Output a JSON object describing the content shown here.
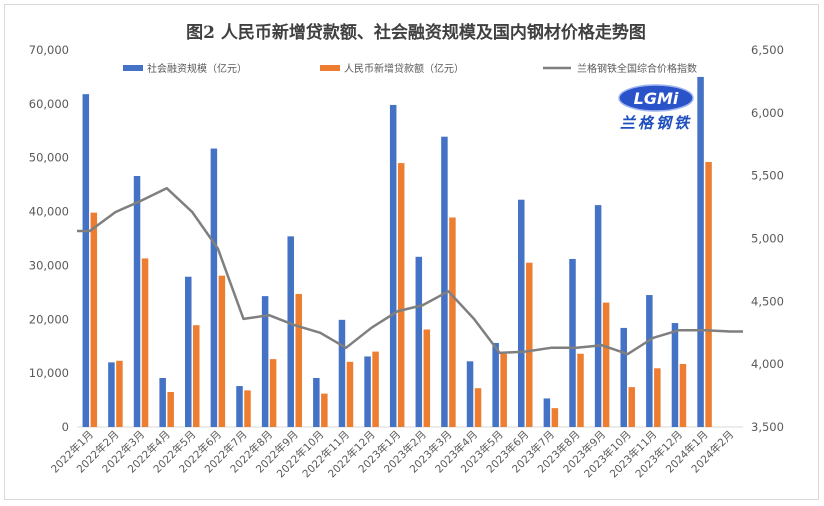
{
  "chart_data": {
    "type": "bar",
    "title": "图2 人民币新增贷款额、社会融资规模及国内钢材价格走势图",
    "categories": [
      "2022年1月",
      "2022年2月",
      "2022年3月",
      "2022年4月",
      "2022年5月",
      "2022年6月",
      "2022年7月",
      "2022年8月",
      "2022年9月",
      "2022年10月",
      "2022年11月",
      "2022年12月",
      "2023年1月",
      "2023年2月",
      "2023年3月",
      "2023年4月",
      "2023年5月",
      "2023年6月",
      "2023年7月",
      "2023年8月",
      "2023年9月",
      "2023年10月",
      "2023年11月",
      "2023年12月",
      "2024年1月",
      "2024年2月"
    ],
    "series": [
      {
        "name": "社会融资规模（亿元）",
        "type": "bar",
        "axis": "left",
        "color": "#4472c4",
        "values": [
          61800,
          12000,
          46600,
          9100,
          27900,
          51700,
          7600,
          24300,
          35400,
          9100,
          19900,
          13100,
          59800,
          31600,
          53900,
          12200,
          15600,
          42200,
          5300,
          31200,
          41200,
          18400,
          24500,
          19300,
          65000,
          null
        ]
      },
      {
        "name": "人民币新增贷款额（亿元）",
        "type": "bar",
        "axis": "left",
        "color": "#ed7d31",
        "values": [
          39800,
          12300,
          31300,
          6500,
          18900,
          28100,
          6800,
          12600,
          24700,
          6200,
          12100,
          14000,
          49000,
          18100,
          38900,
          7200,
          13600,
          30500,
          3500,
          13600,
          23100,
          7400,
          10900,
          11700,
          49200,
          null
        ]
      },
      {
        "name": "兰格钢铁全国综合价格指数",
        "type": "line",
        "axis": "right",
        "color": "#7f7f7f",
        "values": [
          5060,
          5210,
          5300,
          5400,
          5210,
          4920,
          4360,
          4390,
          4310,
          4250,
          4130,
          4290,
          4420,
          4470,
          4580,
          4360,
          4090,
          4100,
          4130,
          4130,
          4150,
          4080,
          4210,
          4270,
          4270,
          4260
        ]
      }
    ],
    "y_left": {
      "min": 0,
      "max": 70000,
      "ticks": [
        "0",
        "10,000",
        "20,000",
        "30,000",
        "40,000",
        "50,000",
        "60,000",
        "70,000"
      ]
    },
    "y_right": {
      "min": 3500,
      "max": 6500,
      "ticks": [
        "3,500",
        "4,000",
        "4,500",
        "5,000",
        "5,500",
        "6,000",
        "6,500"
      ]
    },
    "grid": false,
    "legend": "top"
  },
  "logo": {
    "badge": "LGMi",
    "text": "兰格钢铁"
  }
}
